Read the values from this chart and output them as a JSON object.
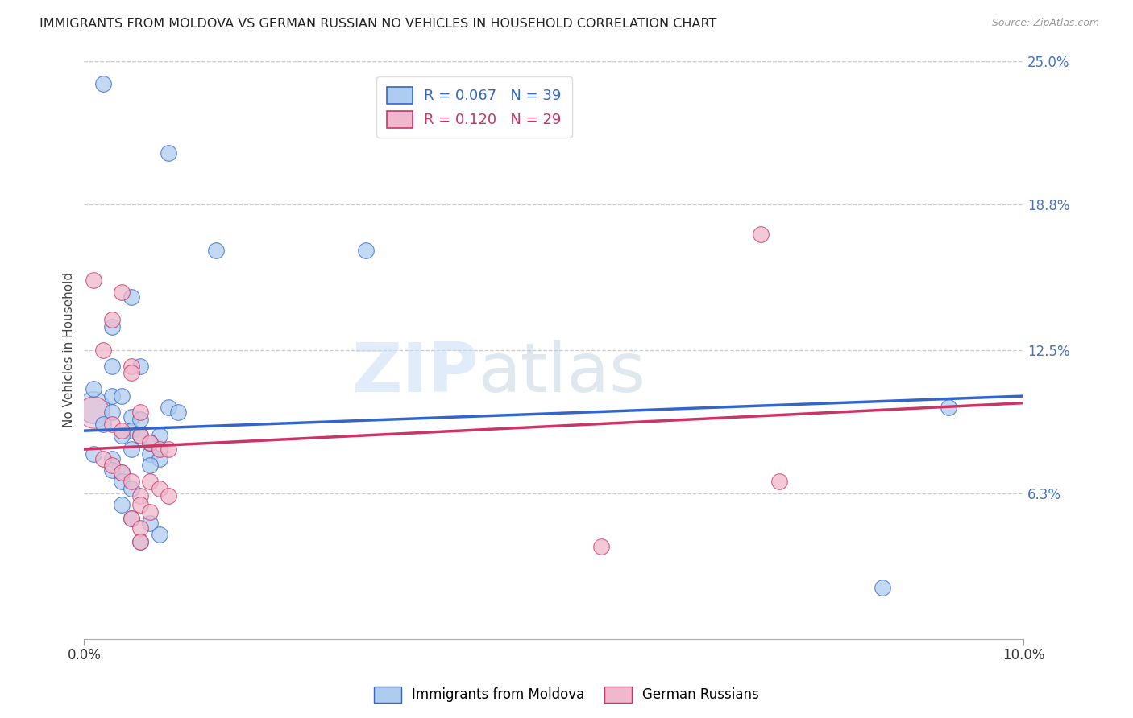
{
  "title": "IMMIGRANTS FROM MOLDOVA VS GERMAN RUSSIAN NO VEHICLES IN HOUSEHOLD CORRELATION CHART",
  "source": "Source: ZipAtlas.com",
  "ylabel": "No Vehicles in Household",
  "xlim": [
    0.0,
    0.1
  ],
  "ylim": [
    0.0,
    0.25
  ],
  "ytick_positions": [
    0.063,
    0.125,
    0.188,
    0.25
  ],
  "ytick_labels": [
    "6.3%",
    "12.5%",
    "18.8%",
    "25.0%"
  ],
  "blue_R": 0.067,
  "blue_N": 39,
  "pink_R": 0.12,
  "pink_N": 29,
  "blue_label": "Immigrants from Moldova",
  "pink_label": "German Russians",
  "blue_color": "#aeccf0",
  "pink_color": "#f0b8cc",
  "blue_line_color": "#3366cc",
  "pink_line_color": "#cc3366",
  "blue_scatter": [
    [
      0.002,
      0.24
    ],
    [
      0.009,
      0.21
    ],
    [
      0.014,
      0.168
    ],
    [
      0.03,
      0.168
    ],
    [
      0.005,
      0.148
    ],
    [
      0.003,
      0.135
    ],
    [
      0.003,
      0.118
    ],
    [
      0.006,
      0.118
    ],
    [
      0.001,
      0.108
    ],
    [
      0.003,
      0.105
    ],
    [
      0.004,
      0.105
    ],
    [
      0.003,
      0.098
    ],
    [
      0.005,
      0.096
    ],
    [
      0.005,
      0.09
    ],
    [
      0.006,
      0.088
    ],
    [
      0.005,
      0.082
    ],
    [
      0.007,
      0.08
    ],
    [
      0.001,
      0.08
    ],
    [
      0.008,
      0.078
    ],
    [
      0.007,
      0.075
    ],
    [
      0.002,
      0.093
    ],
    [
      0.004,
      0.088
    ],
    [
      0.009,
      0.1
    ],
    [
      0.006,
      0.095
    ],
    [
      0.01,
      0.098
    ],
    [
      0.008,
      0.088
    ],
    [
      0.007,
      0.085
    ],
    [
      0.003,
      0.078
    ],
    [
      0.003,
      0.073
    ],
    [
      0.004,
      0.072
    ],
    [
      0.004,
      0.068
    ],
    [
      0.005,
      0.065
    ],
    [
      0.004,
      0.058
    ],
    [
      0.005,
      0.052
    ],
    [
      0.007,
      0.05
    ],
    [
      0.008,
      0.045
    ],
    [
      0.006,
      0.042
    ],
    [
      0.085,
      0.022
    ],
    [
      0.092,
      0.1
    ]
  ],
  "pink_scatter": [
    [
      0.001,
      0.155
    ],
    [
      0.004,
      0.15
    ],
    [
      0.003,
      0.138
    ],
    [
      0.002,
      0.125
    ],
    [
      0.005,
      0.118
    ],
    [
      0.005,
      0.115
    ],
    [
      0.006,
      0.098
    ],
    [
      0.003,
      0.093
    ],
    [
      0.004,
      0.09
    ],
    [
      0.006,
      0.088
    ],
    [
      0.007,
      0.085
    ],
    [
      0.008,
      0.082
    ],
    [
      0.009,
      0.082
    ],
    [
      0.002,
      0.078
    ],
    [
      0.003,
      0.075
    ],
    [
      0.004,
      0.072
    ],
    [
      0.005,
      0.068
    ],
    [
      0.007,
      0.068
    ],
    [
      0.008,
      0.065
    ],
    [
      0.009,
      0.062
    ],
    [
      0.006,
      0.062
    ],
    [
      0.006,
      0.058
    ],
    [
      0.007,
      0.055
    ],
    [
      0.005,
      0.052
    ],
    [
      0.006,
      0.048
    ],
    [
      0.006,
      0.042
    ],
    [
      0.074,
      0.068
    ],
    [
      0.055,
      0.04
    ],
    [
      0.072,
      0.175
    ]
  ],
  "watermark_zip": "ZIP",
  "watermark_atlas": "atlas",
  "background_color": "#ffffff",
  "grid_color": "#cccccc",
  "title_color": "#222222",
  "title_fontsize": 11.5,
  "axis_label_color": "#444444",
  "tick_label_color_y": "#4472c4",
  "tick_label_color_x": "#333333",
  "legend_box_color": "#dddddd"
}
